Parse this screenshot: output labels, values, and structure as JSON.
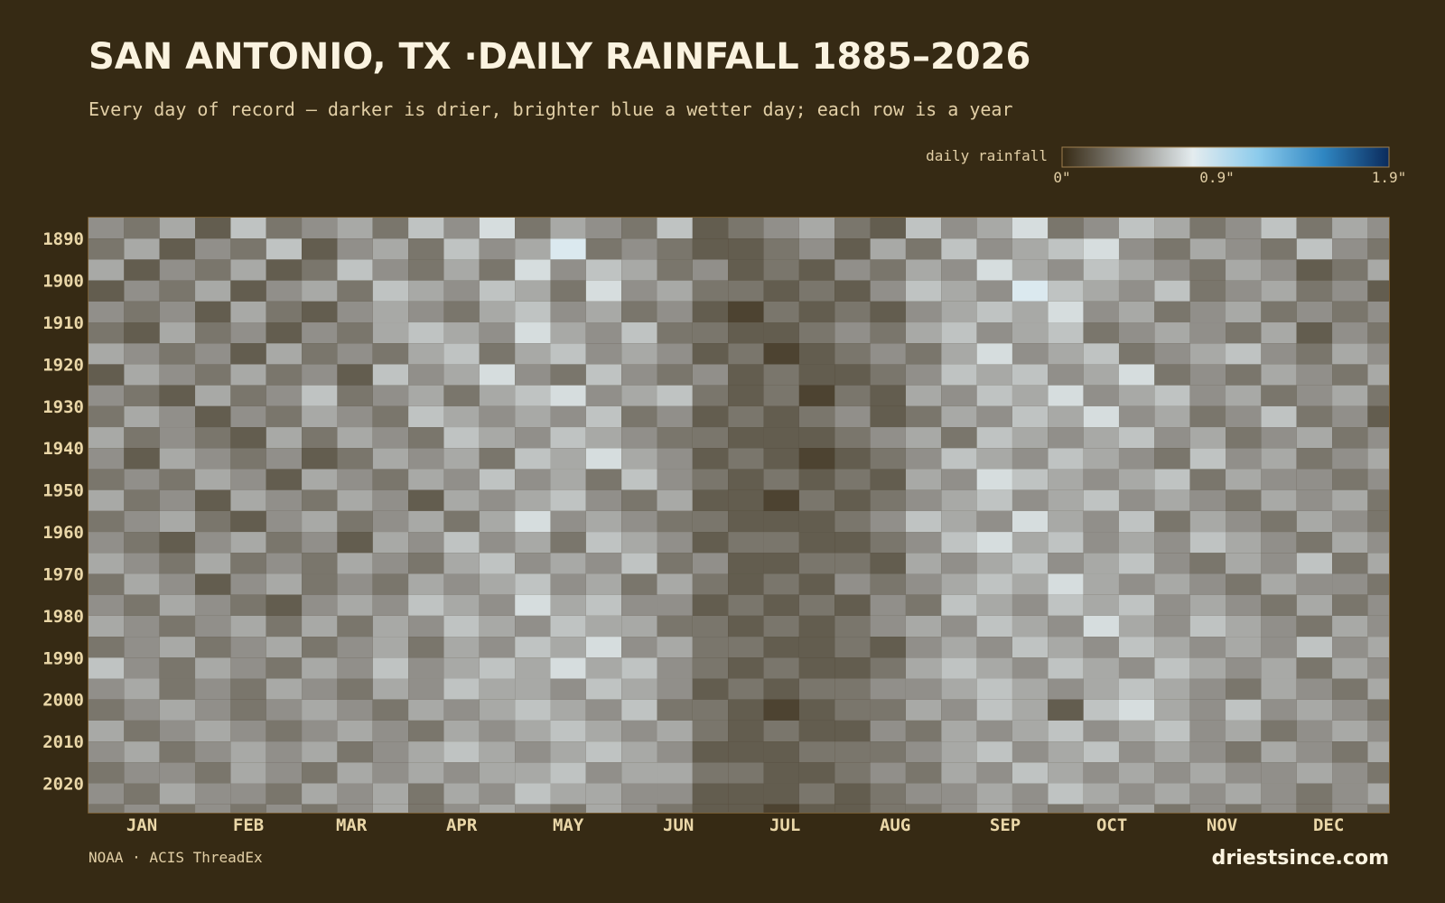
{
  "chart_data": {
    "type": "heatmap",
    "title": "SAN ANTONIO, TX ·DAILY RAINFALL 1885–2026",
    "subtitle": "Every day of record — darker is drier, brighter blue a wetter day; each row is a year",
    "colorbar_label": "daily rainfall",
    "source": "NOAA · ACIS ThreadEx",
    "brand": "driestsince.com",
    "colors": [
      "#362a14",
      "#8c8a84",
      "#e4ecef",
      "#8ccbec",
      "#2f86c2",
      "#0b2b5c"
    ],
    "zlim": [
      0,
      1.9
    ],
    "zticks": [
      {
        "value": 0,
        "label": "0\""
      },
      {
        "value": 0.9,
        "label": "0.9\""
      },
      {
        "value": 1.9,
        "label": "1.9\""
      }
    ],
    "xlim": [
      1,
      367
    ],
    "xticks": [
      {
        "value": 16,
        "label": "JAN"
      },
      {
        "value": 46,
        "label": "FEB"
      },
      {
        "value": 75,
        "label": "MAR"
      },
      {
        "value": 106,
        "label": "APR"
      },
      {
        "value": 136,
        "label": "MAY"
      },
      {
        "value": 167,
        "label": "JUN"
      },
      {
        "value": 197,
        "label": "JUL"
      },
      {
        "value": 228,
        "label": "AUG"
      },
      {
        "value": 259,
        "label": "SEP"
      },
      {
        "value": 289,
        "label": "OCT"
      },
      {
        "value": 320,
        "label": "NOV"
      },
      {
        "value": 350,
        "label": "DEC"
      }
    ],
    "ylim": [
      1885,
      2027
    ],
    "yticks": [
      1890,
      1900,
      1910,
      1920,
      1930,
      1940,
      1950,
      1960,
      1970,
      1980,
      1990,
      2000,
      2010,
      2020
    ],
    "x": [
      1,
      11,
      21,
      31,
      41,
      51,
      61,
      71,
      81,
      91,
      101,
      111,
      121,
      131,
      141,
      151,
      161,
      171,
      181,
      191,
      201,
      211,
      221,
      231,
      241,
      251,
      261,
      271,
      281,
      291,
      301,
      311,
      321,
      331,
      341,
      351,
      361
    ],
    "y": [
      1885,
      1890,
      1895,
      1900,
      1905,
      1910,
      1915,
      1920,
      1925,
      1930,
      1935,
      1940,
      1945,
      1950,
      1955,
      1960,
      1965,
      1970,
      1975,
      1980,
      1985,
      1990,
      1995,
      2000,
      2005,
      2010,
      2015,
      2020,
      2025
    ],
    "z": [
      [
        0.4,
        0.3,
        0.5,
        0.2,
        0.6,
        0.3,
        0.4,
        0.5,
        0.3,
        0.6,
        0.4,
        0.7,
        0.3,
        0.5,
        0.4,
        0.3,
        0.6,
        0.2,
        0.3,
        0.4,
        0.5,
        0.3,
        0.2,
        0.6,
        0.4,
        0.5,
        0.7,
        0.3,
        0.4,
        0.6,
        0.5,
        0.3,
        0.4,
        0.6,
        0.3,
        0.5,
        0.4
      ],
      [
        0.3,
        0.5,
        0.2,
        0.4,
        0.3,
        0.6,
        0.2,
        0.4,
        0.5,
        0.3,
        0.6,
        0.4,
        0.5,
        0.8,
        0.3,
        0.4,
        0.3,
        0.2,
        0.2,
        0.3,
        0.4,
        0.2,
        0.5,
        0.3,
        0.6,
        0.4,
        0.5,
        0.6,
        0.7,
        0.4,
        0.3,
        0.5,
        0.4,
        0.3,
        0.6,
        0.4,
        0.3
      ],
      [
        0.5,
        0.2,
        0.4,
        0.3,
        0.5,
        0.2,
        0.3,
        0.6,
        0.4,
        0.3,
        0.5,
        0.3,
        0.7,
        0.4,
        0.6,
        0.5,
        0.3,
        0.4,
        0.2,
        0.3,
        0.2,
        0.4,
        0.3,
        0.5,
        0.4,
        0.7,
        0.5,
        0.4,
        0.6,
        0.5,
        0.4,
        0.3,
        0.5,
        0.4,
        0.2,
        0.3,
        0.5
      ],
      [
        0.2,
        0.4,
        0.3,
        0.5,
        0.2,
        0.4,
        0.5,
        0.3,
        0.6,
        0.5,
        0.4,
        0.6,
        0.5,
        0.3,
        0.7,
        0.4,
        0.5,
        0.3,
        0.3,
        0.2,
        0.3,
        0.2,
        0.4,
        0.6,
        0.5,
        0.4,
        0.8,
        0.6,
        0.5,
        0.4,
        0.6,
        0.3,
        0.4,
        0.5,
        0.3,
        0.4,
        0.2
      ],
      [
        0.4,
        0.3,
        0.4,
        0.2,
        0.5,
        0.3,
        0.2,
        0.4,
        0.5,
        0.4,
        0.3,
        0.5,
        0.6,
        0.4,
        0.5,
        0.3,
        0.4,
        0.2,
        0.1,
        0.3,
        0.2,
        0.3,
        0.2,
        0.4,
        0.5,
        0.6,
        0.5,
        0.7,
        0.4,
        0.5,
        0.3,
        0.4,
        0.5,
        0.3,
        0.4,
        0.3,
        0.4
      ],
      [
        0.3,
        0.2,
        0.5,
        0.3,
        0.4,
        0.2,
        0.4,
        0.3,
        0.5,
        0.6,
        0.5,
        0.4,
        0.7,
        0.5,
        0.4,
        0.6,
        0.3,
        0.3,
        0.2,
        0.2,
        0.3,
        0.4,
        0.3,
        0.5,
        0.6,
        0.4,
        0.5,
        0.6,
        0.3,
        0.4,
        0.5,
        0.4,
        0.3,
        0.5,
        0.2,
        0.4,
        0.3
      ],
      [
        0.5,
        0.4,
        0.3,
        0.4,
        0.2,
        0.5,
        0.3,
        0.4,
        0.3,
        0.5,
        0.6,
        0.3,
        0.5,
        0.6,
        0.4,
        0.5,
        0.4,
        0.2,
        0.3,
        0.1,
        0.2,
        0.3,
        0.4,
        0.3,
        0.5,
        0.7,
        0.4,
        0.5,
        0.6,
        0.3,
        0.4,
        0.5,
        0.6,
        0.4,
        0.3,
        0.5,
        0.4
      ],
      [
        0.2,
        0.5,
        0.4,
        0.3,
        0.5,
        0.3,
        0.4,
        0.2,
        0.6,
        0.4,
        0.5,
        0.7,
        0.4,
        0.3,
        0.6,
        0.4,
        0.3,
        0.4,
        0.2,
        0.3,
        0.2,
        0.2,
        0.3,
        0.4,
        0.6,
        0.5,
        0.6,
        0.4,
        0.5,
        0.7,
        0.3,
        0.4,
        0.3,
        0.5,
        0.4,
        0.3,
        0.5
      ],
      [
        0.4,
        0.3,
        0.2,
        0.5,
        0.3,
        0.4,
        0.6,
        0.3,
        0.4,
        0.5,
        0.3,
        0.5,
        0.6,
        0.7,
        0.4,
        0.5,
        0.6,
        0.3,
        0.2,
        0.3,
        0.1,
        0.3,
        0.2,
        0.5,
        0.4,
        0.6,
        0.5,
        0.7,
        0.4,
        0.5,
        0.6,
        0.4,
        0.5,
        0.3,
        0.4,
        0.5,
        0.3
      ],
      [
        0.3,
        0.5,
        0.4,
        0.2,
        0.4,
        0.3,
        0.5,
        0.4,
        0.3,
        0.6,
        0.5,
        0.4,
        0.5,
        0.4,
        0.6,
        0.3,
        0.4,
        0.2,
        0.3,
        0.2,
        0.3,
        0.4,
        0.2,
        0.3,
        0.5,
        0.4,
        0.6,
        0.5,
        0.7,
        0.4,
        0.5,
        0.3,
        0.4,
        0.6,
        0.3,
        0.4,
        0.2
      ],
      [
        0.5,
        0.3,
        0.4,
        0.3,
        0.2,
        0.5,
        0.3,
        0.5,
        0.4,
        0.3,
        0.6,
        0.5,
        0.4,
        0.6,
        0.5,
        0.4,
        0.3,
        0.3,
        0.2,
        0.2,
        0.2,
        0.3,
        0.4,
        0.5,
        0.3,
        0.6,
        0.5,
        0.4,
        0.5,
        0.6,
        0.4,
        0.5,
        0.3,
        0.4,
        0.5,
        0.3,
        0.4
      ],
      [
        0.4,
        0.2,
        0.5,
        0.4,
        0.3,
        0.4,
        0.2,
        0.3,
        0.5,
        0.4,
        0.5,
        0.3,
        0.6,
        0.5,
        0.7,
        0.5,
        0.4,
        0.2,
        0.3,
        0.2,
        0.1,
        0.2,
        0.3,
        0.4,
        0.6,
        0.5,
        0.4,
        0.6,
        0.5,
        0.4,
        0.3,
        0.6,
        0.4,
        0.5,
        0.3,
        0.4,
        0.5
      ],
      [
        0.3,
        0.4,
        0.3,
        0.5,
        0.4,
        0.2,
        0.5,
        0.4,
        0.3,
        0.5,
        0.4,
        0.6,
        0.4,
        0.5,
        0.3,
        0.6,
        0.4,
        0.3,
        0.2,
        0.3,
        0.2,
        0.3,
        0.2,
        0.5,
        0.4,
        0.7,
        0.6,
        0.5,
        0.4,
        0.5,
        0.6,
        0.3,
        0.5,
        0.4,
        0.4,
        0.3,
        0.4
      ],
      [
        0.5,
        0.3,
        0.4,
        0.2,
        0.5,
        0.4,
        0.3,
        0.5,
        0.4,
        0.2,
        0.5,
        0.4,
        0.5,
        0.6,
        0.4,
        0.3,
        0.5,
        0.2,
        0.2,
        0.1,
        0.3,
        0.2,
        0.3,
        0.4,
        0.5,
        0.6,
        0.4,
        0.5,
        0.6,
        0.4,
        0.5,
        0.4,
        0.3,
        0.5,
        0.4,
        0.5,
        0.3
      ],
      [
        0.3,
        0.4,
        0.5,
        0.3,
        0.2,
        0.4,
        0.5,
        0.3,
        0.4,
        0.5,
        0.3,
        0.5,
        0.7,
        0.4,
        0.5,
        0.4,
        0.3,
        0.3,
        0.2,
        0.2,
        0.2,
        0.3,
        0.4,
        0.6,
        0.5,
        0.4,
        0.7,
        0.5,
        0.4,
        0.6,
        0.3,
        0.5,
        0.4,
        0.3,
        0.5,
        0.4,
        0.3
      ],
      [
        0.4,
        0.3,
        0.2,
        0.4,
        0.5,
        0.3,
        0.4,
        0.2,
        0.5,
        0.4,
        0.6,
        0.4,
        0.5,
        0.3,
        0.6,
        0.5,
        0.4,
        0.2,
        0.3,
        0.3,
        0.2,
        0.2,
        0.3,
        0.4,
        0.6,
        0.7,
        0.5,
        0.6,
        0.4,
        0.5,
        0.4,
        0.6,
        0.5,
        0.4,
        0.3,
        0.5,
        0.4
      ],
      [
        0.5,
        0.4,
        0.3,
        0.5,
        0.3,
        0.4,
        0.3,
        0.5,
        0.4,
        0.3,
        0.5,
        0.6,
        0.4,
        0.5,
        0.4,
        0.6,
        0.3,
        0.4,
        0.2,
        0.2,
        0.3,
        0.3,
        0.2,
        0.5,
        0.4,
        0.5,
        0.6,
        0.4,
        0.5,
        0.6,
        0.4,
        0.3,
        0.5,
        0.4,
        0.6,
        0.3,
        0.5
      ],
      [
        0.3,
        0.5,
        0.4,
        0.2,
        0.4,
        0.5,
        0.3,
        0.4,
        0.3,
        0.5,
        0.4,
        0.5,
        0.6,
        0.4,
        0.5,
        0.3,
        0.5,
        0.3,
        0.2,
        0.3,
        0.2,
        0.4,
        0.3,
        0.4,
        0.5,
        0.6,
        0.5,
        0.7,
        0.5,
        0.4,
        0.5,
        0.4,
        0.3,
        0.5,
        0.4,
        0.4,
        0.3
      ],
      [
        0.4,
        0.3,
        0.5,
        0.4,
        0.3,
        0.2,
        0.4,
        0.5,
        0.4,
        0.6,
        0.5,
        0.4,
        0.7,
        0.5,
        0.6,
        0.4,
        0.4,
        0.2,
        0.3,
        0.2,
        0.3,
        0.2,
        0.4,
        0.3,
        0.6,
        0.5,
        0.4,
        0.6,
        0.5,
        0.6,
        0.4,
        0.5,
        0.4,
        0.3,
        0.5,
        0.3,
        0.4
      ],
      [
        0.5,
        0.4,
        0.3,
        0.4,
        0.5,
        0.3,
        0.5,
        0.3,
        0.5,
        0.4,
        0.6,
        0.5,
        0.4,
        0.6,
        0.5,
        0.5,
        0.3,
        0.3,
        0.2,
        0.3,
        0.2,
        0.3,
        0.4,
        0.5,
        0.4,
        0.6,
        0.5,
        0.4,
        0.7,
        0.5,
        0.4,
        0.6,
        0.5,
        0.4,
        0.3,
        0.5,
        0.4
      ],
      [
        0.3,
        0.4,
        0.5,
        0.3,
        0.4,
        0.5,
        0.3,
        0.4,
        0.5,
        0.3,
        0.5,
        0.4,
        0.6,
        0.5,
        0.7,
        0.4,
        0.5,
        0.3,
        0.3,
        0.2,
        0.2,
        0.3,
        0.2,
        0.4,
        0.5,
        0.4,
        0.6,
        0.5,
        0.4,
        0.6,
        0.5,
        0.4,
        0.5,
        0.4,
        0.6,
        0.4,
        0.5
      ],
      [
        0.6,
        0.4,
        0.3,
        0.5,
        0.4,
        0.3,
        0.5,
        0.4,
        0.6,
        0.4,
        0.5,
        0.6,
        0.5,
        0.7,
        0.5,
        0.6,
        0.4,
        0.3,
        0.2,
        0.3,
        0.2,
        0.2,
        0.3,
        0.5,
        0.6,
        0.5,
        0.4,
        0.6,
        0.5,
        0.4,
        0.6,
        0.5,
        0.4,
        0.5,
        0.3,
        0.5,
        0.4
      ],
      [
        0.4,
        0.5,
        0.3,
        0.4,
        0.3,
        0.5,
        0.4,
        0.3,
        0.5,
        0.4,
        0.6,
        0.5,
        0.5,
        0.4,
        0.6,
        0.5,
        0.4,
        0.2,
        0.3,
        0.2,
        0.3,
        0.3,
        0.4,
        0.4,
        0.5,
        0.6,
        0.5,
        0.4,
        0.5,
        0.6,
        0.5,
        0.4,
        0.3,
        0.5,
        0.4,
        0.3,
        0.5
      ],
      [
        0.3,
        0.4,
        0.5,
        0.4,
        0.3,
        0.4,
        0.5,
        0.4,
        0.3,
        0.5,
        0.4,
        0.5,
        0.6,
        0.5,
        0.4,
        0.6,
        0.3,
        0.3,
        0.2,
        0.1,
        0.2,
        0.3,
        0.3,
        0.5,
        0.4,
        0.6,
        0.5,
        0.2,
        0.6,
        0.7,
        0.5,
        0.4,
        0.6,
        0.4,
        0.5,
        0.4,
        0.3
      ],
      [
        0.5,
        0.3,
        0.4,
        0.5,
        0.4,
        0.3,
        0.4,
        0.5,
        0.4,
        0.3,
        0.5,
        0.4,
        0.5,
        0.6,
        0.5,
        0.4,
        0.5,
        0.3,
        0.2,
        0.3,
        0.2,
        0.2,
        0.4,
        0.3,
        0.5,
        0.4,
        0.5,
        0.6,
        0.4,
        0.5,
        0.6,
        0.4,
        0.5,
        0.3,
        0.4,
        0.5,
        0.4
      ],
      [
        0.4,
        0.5,
        0.3,
        0.4,
        0.5,
        0.4,
        0.5,
        0.3,
        0.4,
        0.5,
        0.6,
        0.5,
        0.4,
        0.5,
        0.6,
        0.5,
        0.4,
        0.2,
        0.2,
        0.2,
        0.3,
        0.3,
        0.3,
        0.4,
        0.5,
        0.6,
        0.4,
        0.5,
        0.6,
        0.4,
        0.5,
        0.4,
        0.3,
        0.5,
        0.4,
        0.3,
        0.5
      ],
      [
        0.3,
        0.4,
        0.4,
        0.3,
        0.5,
        0.4,
        0.3,
        0.5,
        0.4,
        0.5,
        0.4,
        0.5,
        0.5,
        0.6,
        0.4,
        0.5,
        0.5,
        0.3,
        0.3,
        0.2,
        0.2,
        0.3,
        0.4,
        0.3,
        0.5,
        0.4,
        0.6,
        0.5,
        0.4,
        0.5,
        0.4,
        0.5,
        0.4,
        0.4,
        0.5,
        0.4,
        0.3
      ],
      [
        0.4,
        0.3,
        0.5,
        0.4,
        0.4,
        0.3,
        0.5,
        0.4,
        0.5,
        0.3,
        0.5,
        0.4,
        0.6,
        0.5,
        0.5,
        0.4,
        0.4,
        0.2,
        0.2,
        0.2,
        0.3,
        0.2,
        0.3,
        0.4,
        0.4,
        0.5,
        0.4,
        0.6,
        0.5,
        0.4,
        0.5,
        0.4,
        0.5,
        0.4,
        0.3,
        0.4,
        0.5
      ],
      [
        0.3,
        0.4,
        0.3,
        0.4,
        0.3,
        0.4,
        0.3,
        0.4,
        0.5,
        0.3,
        0.4,
        0.5,
        0.4,
        0.3,
        0.5,
        0.4,
        0.3,
        0.2,
        0.2,
        0.1,
        0.2,
        0.2,
        0.3,
        0.3,
        0.4,
        0.5,
        0.4,
        0.3,
        0.4,
        0.5,
        0.3,
        0.4,
        0.3,
        0.4,
        0.3,
        0.4,
        0.3
      ]
    ]
  }
}
